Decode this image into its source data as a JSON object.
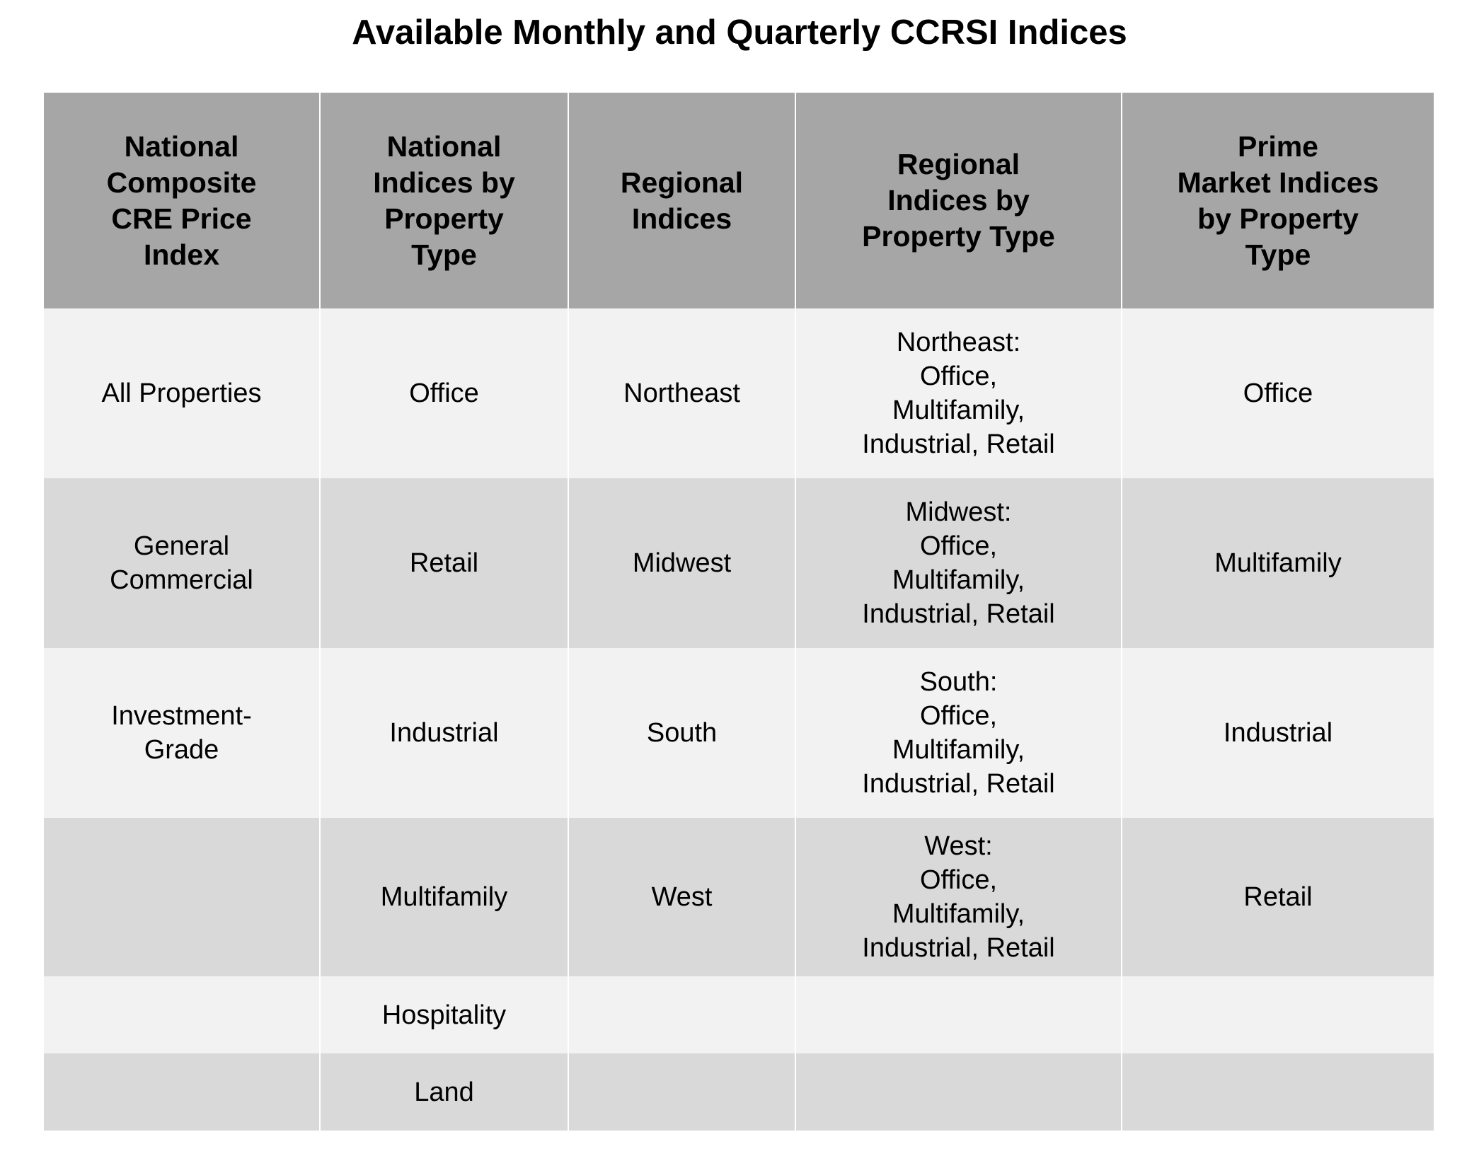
{
  "title": "Available Monthly and Quarterly CCRSI Indices",
  "table": {
    "headers": [
      "National\nComposite\nCRE Price\nIndex",
      "National\nIndices by\nProperty\nType",
      "Regional\nIndices",
      "Regional\nIndices by\nProperty Type",
      "Prime\nMarket Indices\nby Property\nType"
    ],
    "rows": [
      [
        "All Properties",
        "Office",
        "Northeast",
        "Northeast:\nOffice,\nMultifamily,\nIndustrial, Retail",
        "Office"
      ],
      [
        "General\nCommercial",
        "Retail",
        "Midwest",
        "Midwest:\nOffice,\nMultifamily,\nIndustrial, Retail",
        "Multifamily"
      ],
      [
        "Investment-\nGrade",
        "Industrial",
        "South",
        "South:\nOffice,\nMultifamily,\nIndustrial, Retail",
        "Industrial"
      ],
      [
        "",
        "Multifamily",
        "West",
        "West:\nOffice,\nMultifamily,\nIndustrial, Retail",
        "Retail"
      ],
      [
        "",
        "Hospitality",
        "",
        "",
        ""
      ],
      [
        "",
        "Land",
        "",
        "",
        ""
      ]
    ]
  },
  "colors": {
    "header_bg": "#a6a6a6",
    "row_light": "#f2f2f2",
    "row_dark": "#d9d9d9",
    "grid_line": "#ffffff"
  }
}
